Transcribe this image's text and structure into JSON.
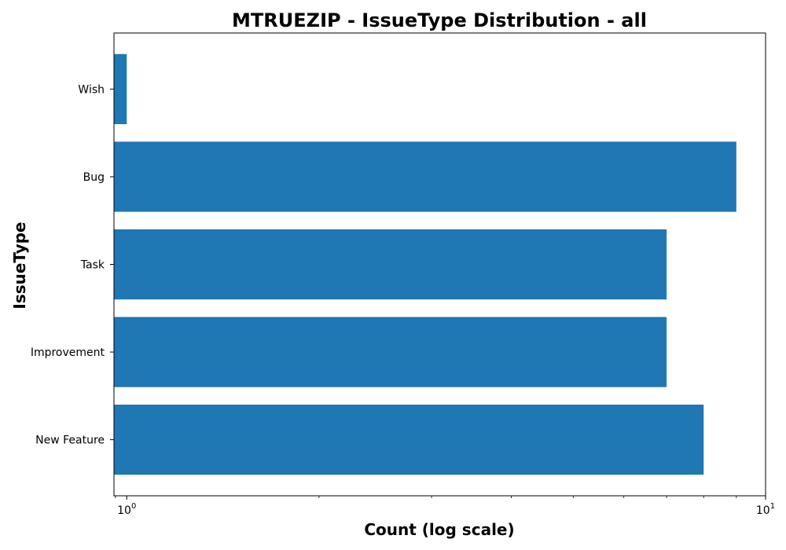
{
  "chart_data": {
    "type": "bar",
    "orientation": "horizontal",
    "title": "MTRUEZIP - IssueType Distribution - all",
    "xlabel": "Count (log scale)",
    "ylabel": "IssueType",
    "x_scale": "log",
    "x_ticks": [
      {
        "base": "10",
        "exp": "0",
        "value": 1
      },
      {
        "base": "10",
        "exp": "1",
        "value": 10
      }
    ],
    "categories": [
      "Wish",
      "Bug",
      "Task",
      "Improvement",
      "New Feature"
    ],
    "values": [
      1,
      9,
      7,
      7,
      8
    ],
    "bar_color": "#1f77b4",
    "grid": false
  }
}
